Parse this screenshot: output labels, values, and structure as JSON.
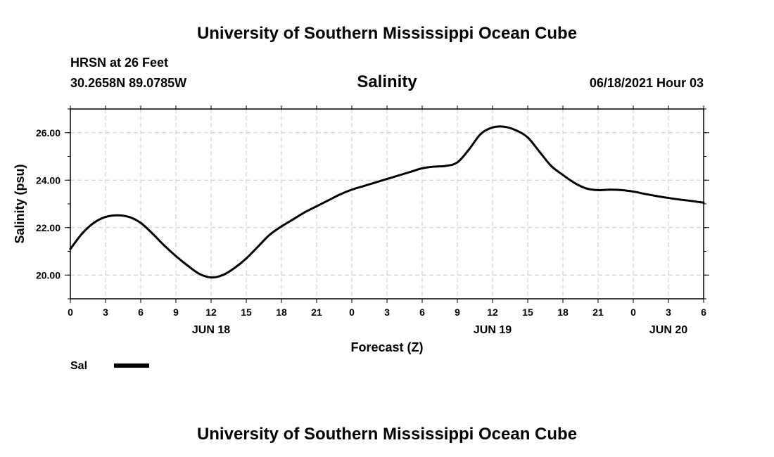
{
  "header": {
    "title": "University of Southern Mississippi Ocean Cube",
    "station": "HRSN at 26 Feet",
    "coords": "30.2658N  89.0785W",
    "parameter": "Salinity",
    "datetime": "06/18/2021 Hour 03"
  },
  "footer": {
    "title": "University of Southern Mississippi Ocean Cube"
  },
  "legend": {
    "label": "Sal"
  },
  "chart_data": {
    "type": "line",
    "title": "Salinity",
    "xlabel": "Forecast (Z)",
    "ylabel": "Salinity (psu)",
    "xlim": [
      0,
      54
    ],
    "ylim": [
      19.0,
      27.0
    ],
    "grid": true,
    "legend_position": "bottom-left",
    "x_ticks": [
      {
        "x": 0,
        "label": "0"
      },
      {
        "x": 3,
        "label": "3"
      },
      {
        "x": 6,
        "label": "6"
      },
      {
        "x": 9,
        "label": "9"
      },
      {
        "x": 12,
        "label": "12"
      },
      {
        "x": 15,
        "label": "15"
      },
      {
        "x": 18,
        "label": "18"
      },
      {
        "x": 21,
        "label": "21"
      },
      {
        "x": 24,
        "label": "0"
      },
      {
        "x": 27,
        "label": "3"
      },
      {
        "x": 30,
        "label": "6"
      },
      {
        "x": 33,
        "label": "9"
      },
      {
        "x": 36,
        "label": "12"
      },
      {
        "x": 39,
        "label": "15"
      },
      {
        "x": 42,
        "label": "18"
      },
      {
        "x": 45,
        "label": "21"
      },
      {
        "x": 48,
        "label": "0"
      },
      {
        "x": 51,
        "label": "3"
      },
      {
        "x": 54,
        "label": "6"
      }
    ],
    "date_labels": [
      {
        "x": 12,
        "label": "JUN 18"
      },
      {
        "x": 36,
        "label": "JUN 19"
      },
      {
        "x": 51,
        "label": "JUN 20"
      }
    ],
    "y_ticks": [
      {
        "y": 20,
        "label": "20.00"
      },
      {
        "y": 22,
        "label": "22.00"
      },
      {
        "y": 24,
        "label": "24.00"
      },
      {
        "y": 26,
        "label": "26.00"
      }
    ],
    "y_minor_step": 1,
    "series": [
      {
        "name": "Sal",
        "color": "#000000",
        "x": [
          0,
          1,
          2,
          3,
          4,
          5,
          6,
          7,
          8,
          9,
          10,
          11,
          12,
          13,
          14,
          15,
          16,
          17,
          18,
          19,
          20,
          21,
          22,
          23,
          24,
          25,
          26,
          27,
          28,
          29,
          30,
          31,
          32,
          33,
          34,
          35,
          36,
          37,
          38,
          39,
          40,
          41,
          42,
          43,
          44,
          45,
          46,
          47,
          48,
          49,
          50,
          51,
          52,
          53,
          54
        ],
        "values": [
          21.1,
          21.75,
          22.2,
          22.45,
          22.52,
          22.45,
          22.2,
          21.75,
          21.25,
          20.8,
          20.4,
          20.05,
          19.9,
          20.0,
          20.3,
          20.7,
          21.2,
          21.7,
          22.05,
          22.35,
          22.65,
          22.9,
          23.15,
          23.4,
          23.6,
          23.75,
          23.9,
          24.05,
          24.2,
          24.35,
          24.5,
          24.57,
          24.6,
          24.75,
          25.3,
          25.95,
          26.22,
          26.25,
          26.1,
          25.8,
          25.2,
          24.6,
          24.22,
          23.88,
          23.65,
          23.58,
          23.6,
          23.58,
          23.52,
          23.42,
          23.33,
          23.25,
          23.18,
          23.12,
          23.05
        ]
      }
    ]
  }
}
